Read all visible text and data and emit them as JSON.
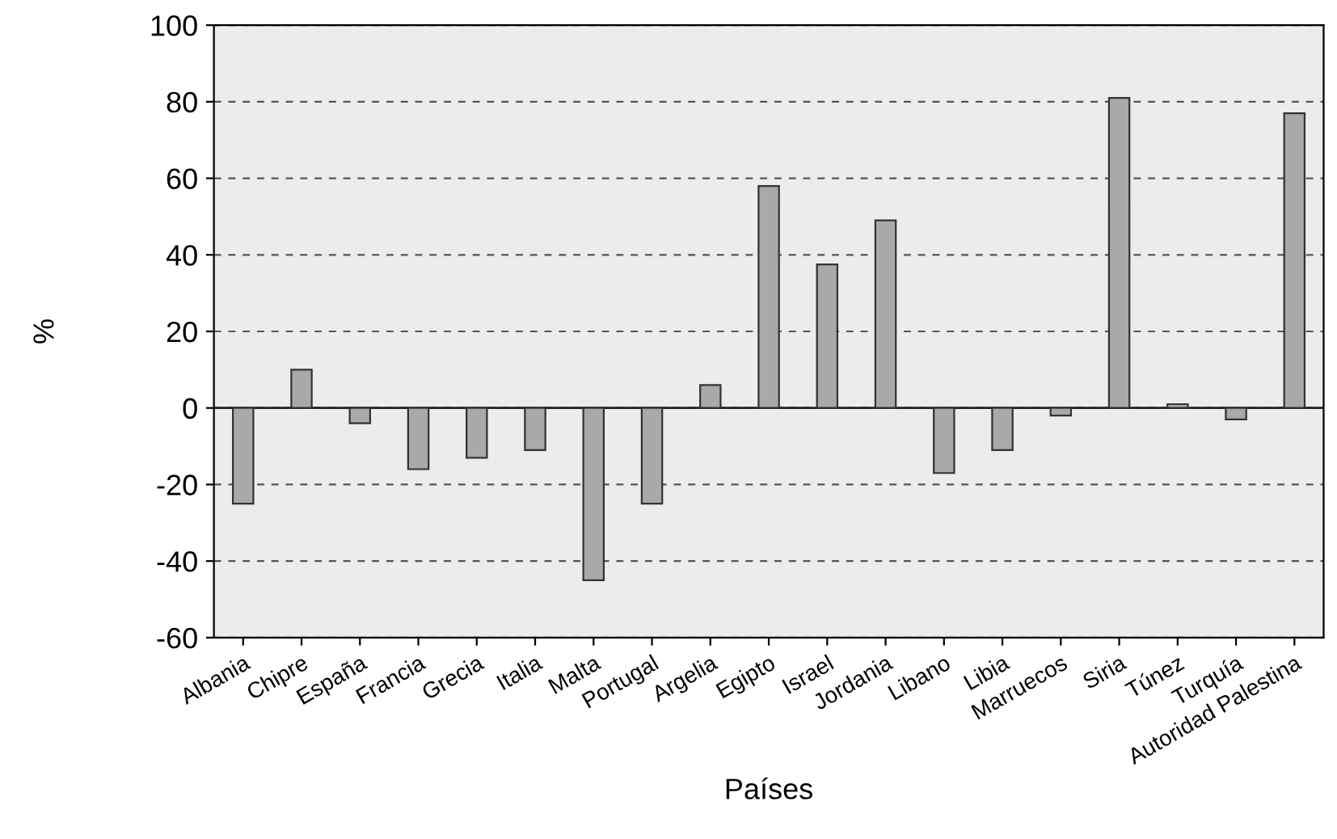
{
  "chart_data": {
    "type": "bar",
    "xlabel": "Países",
    "ylabel": "%",
    "categories": [
      "Albania",
      "Chipre",
      "España",
      "Francia",
      "Grecia",
      "Italia",
      "Malta",
      "Portugal",
      "Argelia",
      "Egipto",
      "Israel",
      "Jordania",
      "Libano",
      "Libia",
      "Marruecos",
      "Siria",
      "Túnez",
      "Turquía",
      "Autoridad Palestina"
    ],
    "values": [
      -25,
      10,
      -4,
      -16,
      -13,
      -11,
      -45,
      -25,
      6,
      58,
      37.5,
      49,
      -17,
      -11,
      -2,
      81,
      1,
      -3,
      77
    ],
    "color": "#a9a9a9",
    "ylim": [
      -60,
      100
    ],
    "yticks": [
      -60,
      -40,
      -20,
      0,
      20,
      40,
      60,
      80,
      100
    ],
    "grid": "y"
  }
}
